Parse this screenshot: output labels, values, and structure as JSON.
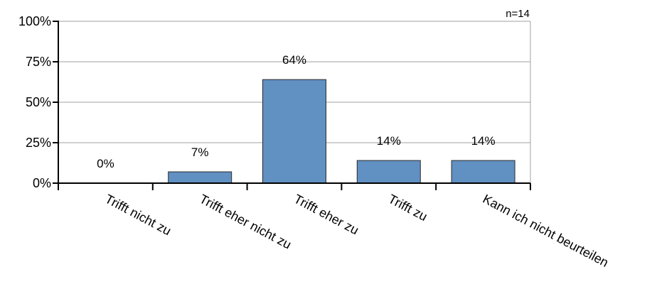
{
  "chart_data": {
    "type": "bar",
    "categories": [
      "Trifft nicht zu",
      "Trifft eher nicht zu",
      "Trifft eher zu",
      "Trifft zu",
      "Kann ich nicht beurteilen"
    ],
    "values": [
      0,
      7,
      64,
      14,
      14
    ],
    "data_labels": [
      "0%",
      "7%",
      "64%",
      "14%",
      "14%"
    ],
    "y_ticks": [
      0,
      25,
      50,
      75,
      100
    ],
    "y_tick_labels": [
      "0%",
      "25%",
      "50%",
      "75%",
      "100%"
    ],
    "ylim": [
      0,
      100
    ],
    "annotation": "n=14",
    "grid": true,
    "bar_color": "#6190c2",
    "bar_edge_color": "#2b2b2b",
    "grid_color": "#a0a0a0"
  }
}
